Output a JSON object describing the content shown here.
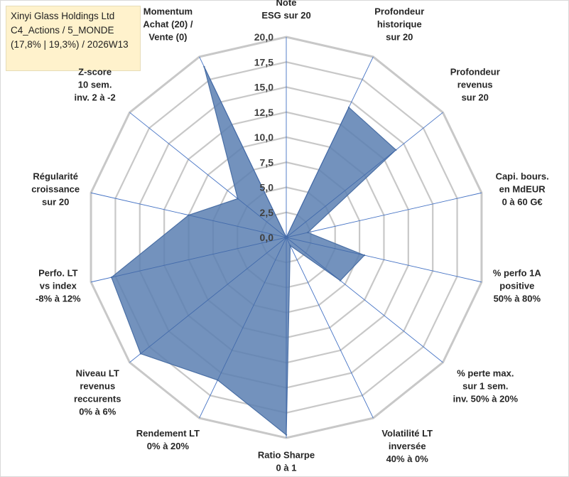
{
  "title": {
    "line1": "Xinyi Glass Holdings Ltd",
    "line2": "C4_Actions / 5_MONDE",
    "line3": "(17,8% | 19,3%) / 2026W13"
  },
  "colors": {
    "grid": "#c8c8c8",
    "spoke": "#4472c4",
    "fill": "#5b7fb2",
    "stroke": "#4a6fa5"
  },
  "chart_data": {
    "type": "radar",
    "rmax": 20,
    "ticks": [
      "0,0",
      "2,5",
      "5,0",
      "7,5",
      "10,0",
      "12,5",
      "15,0",
      "17,5",
      "20,0"
    ],
    "tick_values": [
      0,
      2.5,
      5,
      7.5,
      10,
      12.5,
      15,
      17.5,
      20
    ],
    "axes": [
      {
        "label": [
          "Note",
          "ESG sur 20"
        ],
        "value": 0
      },
      {
        "label": [
          "Profondeur",
          "historique",
          "sur 20"
        ],
        "value": 14.4
      },
      {
        "label": [
          "Profondeur",
          "revenus",
          "sur 20"
        ],
        "value": 14.0
      },
      {
        "label": [
          "Capi. bours.",
          "en MdEUR",
          "0 à 60 G€"
        ],
        "value": 2.2
      },
      {
        "label": [
          "% perfo 1A",
          "positive",
          "50% à 80%"
        ],
        "value": 8.0
      },
      {
        "label": [
          "% perte max.",
          "sur 1 sem.",
          "inv. 50% à 20%"
        ],
        "value": 6.9
      },
      {
        "label": [
          "Volatilité LT",
          "inversée",
          "40% à 0%"
        ],
        "value": 0.9
      },
      {
        "label": [
          "Ratio Sharpe",
          "0 à 1"
        ],
        "value": 19.7
      },
      {
        "label": [
          "Rendement LT",
          "0% à 20%"
        ],
        "value": 15.8
      },
      {
        "label": [
          "Niveau LT",
          "revenus",
          "reccurents",
          "0% à 6%"
        ],
        "value": 18.6
      },
      {
        "label": [
          "Perfo. LT",
          "vs index",
          "-8% à 12%"
        ],
        "value": 17.9
      },
      {
        "label": [
          "Régularité",
          "croissance",
          "sur 20"
        ],
        "value": 10.0
      },
      {
        "label": [
          "Z-score",
          "10 sem.",
          "inv. 2 à -2"
        ],
        "value": 6.2
      },
      {
        "label": [
          "Momentum",
          "Achat (20) /",
          "Vente (0)"
        ],
        "value": 18.9
      }
    ]
  }
}
